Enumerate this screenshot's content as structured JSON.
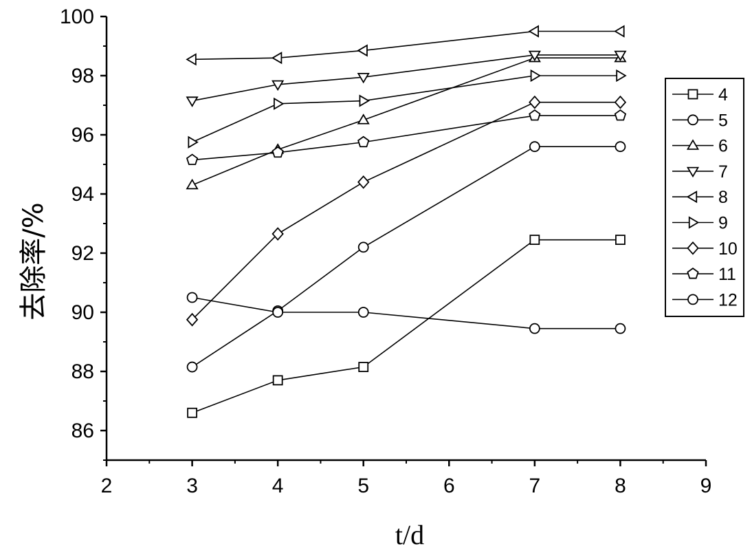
{
  "chart_data": {
    "type": "line",
    "title": "",
    "xlabel": "t/d",
    "ylabel": "去除率/%",
    "xlim": [
      2,
      9
    ],
    "ylim": [
      85,
      100
    ],
    "x_ticks": [
      2,
      3,
      4,
      5,
      6,
      7,
      8,
      9
    ],
    "y_ticks": [
      86,
      88,
      90,
      92,
      94,
      96,
      98,
      100
    ],
    "grid": false,
    "legend_position": "right",
    "x": [
      3,
      4,
      5,
      7,
      8
    ],
    "series": [
      {
        "name": "4",
        "marker": "square",
        "values": [
          86.6,
          87.7,
          88.15,
          92.45,
          92.45
        ]
      },
      {
        "name": "5",
        "marker": "circle",
        "values": [
          88.15,
          90.05,
          92.2,
          95.6,
          95.6
        ]
      },
      {
        "name": "6",
        "marker": "triangle-up",
        "values": [
          94.3,
          95.5,
          96.5,
          98.6,
          98.6
        ]
      },
      {
        "name": "7",
        "marker": "triangle-down",
        "values": [
          97.15,
          97.7,
          97.95,
          98.7,
          98.7
        ]
      },
      {
        "name": "8",
        "marker": "triangle-left",
        "values": [
          98.55,
          98.6,
          98.85,
          99.5,
          99.5
        ]
      },
      {
        "name": "9",
        "marker": "triangle-right",
        "values": [
          95.75,
          97.05,
          97.15,
          98.0,
          98.0
        ]
      },
      {
        "name": "10",
        "marker": "diamond",
        "values": [
          89.75,
          92.65,
          94.4,
          97.1,
          97.1
        ]
      },
      {
        "name": "11",
        "marker": "pentagon",
        "values": [
          95.15,
          95.4,
          95.75,
          96.65,
          96.65
        ]
      },
      {
        "name": "12",
        "marker": "circle",
        "values": [
          90.5,
          90.0,
          90.0,
          89.45,
          89.45
        ]
      }
    ]
  }
}
